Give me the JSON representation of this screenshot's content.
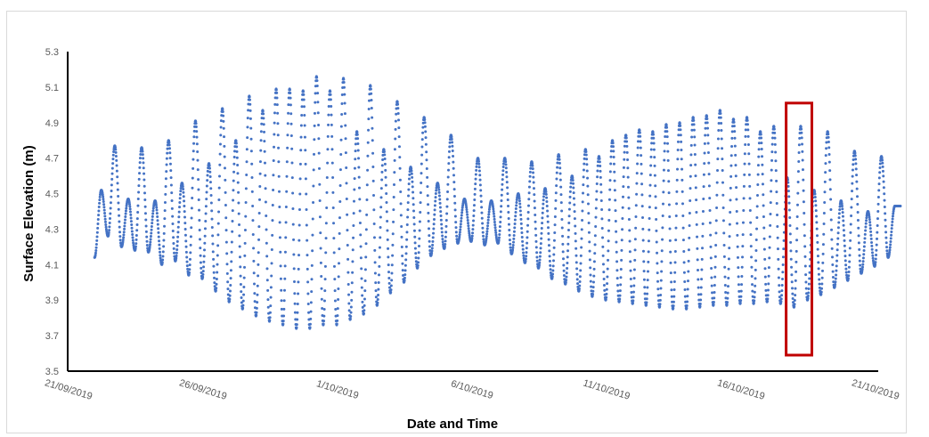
{
  "chart_data": {
    "type": "scatter",
    "title": "",
    "xlabel": "Date and Time",
    "ylabel": "Surface Elevation (m)",
    "ylim": [
      3.5,
      5.3
    ],
    "yticks": [
      "3.5",
      "3.7",
      "3.9",
      "4.1",
      "4.3",
      "4.5",
      "4.7",
      "4.9",
      "5.1",
      "5.3"
    ],
    "xlim": [
      "2019-09-21",
      "2019-10-21"
    ],
    "xticks": [
      "21/09/2019",
      "26/09/2019",
      "1/10/2019",
      "6/10/2019",
      "11/10/2019",
      "16/10/2019",
      "21/10/2019"
    ],
    "grid": false,
    "legend": "none",
    "marker_color": "#4472c4",
    "highlight_color": "#c00000",
    "highlight_box": {
      "x_range": [
        "2019-10-17 17:00",
        "2019-10-18 16:00"
      ],
      "y_range": [
        3.59,
        5.01
      ]
    },
    "series": [
      {
        "description": "semi-diurnal tidal cycles, approx. 15-minute samples",
        "start": "2019-09-22 00:00",
        "end": "2019-10-21 23:00",
        "high_water": [
          [
            "2019-09-22 06:00",
            4.52
          ],
          [
            "2019-09-22 18:00",
            4.77
          ],
          [
            "2019-09-23 06:00",
            4.47
          ],
          [
            "2019-09-23 18:00",
            4.76
          ],
          [
            "2019-09-24 06:00",
            4.46
          ],
          [
            "2019-09-24 18:00",
            4.8
          ],
          [
            "2019-09-25 06:00",
            4.56
          ],
          [
            "2019-09-25 18:00",
            4.91
          ],
          [
            "2019-09-26 06:00",
            4.67
          ],
          [
            "2019-09-26 18:00",
            4.98
          ],
          [
            "2019-09-27 06:00",
            4.8
          ],
          [
            "2019-09-27 18:00",
            5.05
          ],
          [
            "2019-09-28 06:00",
            4.97
          ],
          [
            "2019-09-28 18:00",
            5.09
          ],
          [
            "2019-09-29 06:00",
            5.09
          ],
          [
            "2019-09-29 18:00",
            5.08
          ],
          [
            "2019-09-30 06:00",
            5.16
          ],
          [
            "2019-09-30 18:00",
            5.08
          ],
          [
            "2019-10-01 06:00",
            5.15
          ],
          [
            "2019-10-01 18:00",
            4.85
          ],
          [
            "2019-10-02 06:00",
            5.11
          ],
          [
            "2019-10-02 18:00",
            4.75
          ],
          [
            "2019-10-03 06:00",
            5.02
          ],
          [
            "2019-10-03 18:00",
            4.65
          ],
          [
            "2019-10-04 06:00",
            4.93
          ],
          [
            "2019-10-04 18:00",
            4.56
          ],
          [
            "2019-10-05 06:00",
            4.83
          ],
          [
            "2019-10-05 18:00",
            4.47
          ],
          [
            "2019-10-06 06:00",
            4.7
          ],
          [
            "2019-10-06 18:00",
            4.46
          ],
          [
            "2019-10-07 06:00",
            4.7
          ],
          [
            "2019-10-07 18:00",
            4.5
          ],
          [
            "2019-10-08 06:00",
            4.68
          ],
          [
            "2019-10-08 18:00",
            4.53
          ],
          [
            "2019-10-09 06:00",
            4.72
          ],
          [
            "2019-10-09 18:00",
            4.6
          ],
          [
            "2019-10-10 06:00",
            4.75
          ],
          [
            "2019-10-10 18:00",
            4.71
          ],
          [
            "2019-10-11 06:00",
            4.8
          ],
          [
            "2019-10-11 18:00",
            4.83
          ],
          [
            "2019-10-12 06:00",
            4.86
          ],
          [
            "2019-10-12 18:00",
            4.85
          ],
          [
            "2019-10-13 06:00",
            4.89
          ],
          [
            "2019-10-13 18:00",
            4.9
          ],
          [
            "2019-10-14 06:00",
            4.93
          ],
          [
            "2019-10-14 18:00",
            4.94
          ],
          [
            "2019-10-15 06:00",
            4.97
          ],
          [
            "2019-10-15 18:00",
            4.92
          ],
          [
            "2019-10-16 06:00",
            4.93
          ],
          [
            "2019-10-16 18:00",
            4.85
          ],
          [
            "2019-10-17 06:00",
            4.88
          ],
          [
            "2019-10-17 18:00",
            4.59
          ],
          [
            "2019-10-18 06:00",
            4.88
          ],
          [
            "2019-10-18 18:00",
            4.52
          ],
          [
            "2019-10-19 06:00",
            4.85
          ],
          [
            "2019-10-19 18:00",
            4.46
          ],
          [
            "2019-10-20 06:00",
            4.74
          ],
          [
            "2019-10-20 18:00",
            4.4
          ],
          [
            "2019-10-21 06:00",
            4.71
          ],
          [
            "2019-10-21 18:00",
            4.43
          ]
        ],
        "low_water": [
          [
            "2019-09-22 00:00",
            4.14
          ],
          [
            "2019-09-22 12:00",
            4.26
          ],
          [
            "2019-09-23 00:00",
            4.2
          ],
          [
            "2019-09-23 12:00",
            4.18
          ],
          [
            "2019-09-24 00:00",
            4.17
          ],
          [
            "2019-09-24 12:00",
            4.1
          ],
          [
            "2019-09-25 00:00",
            4.12
          ],
          [
            "2019-09-25 12:00",
            4.04
          ],
          [
            "2019-09-26 00:00",
            4.02
          ],
          [
            "2019-09-26 12:00",
            3.95
          ],
          [
            "2019-09-27 00:00",
            3.89
          ],
          [
            "2019-09-27 12:00",
            3.85
          ],
          [
            "2019-09-28 00:00",
            3.81
          ],
          [
            "2019-09-28 12:00",
            3.78
          ],
          [
            "2019-09-29 00:00",
            3.76
          ],
          [
            "2019-09-29 12:00",
            3.74
          ],
          [
            "2019-09-30 00:00",
            3.74
          ],
          [
            "2019-09-30 12:00",
            3.76
          ],
          [
            "2019-10-01 00:00",
            3.76
          ],
          [
            "2019-10-01 12:00",
            3.79
          ],
          [
            "2019-10-02 00:00",
            3.82
          ],
          [
            "2019-10-02 12:00",
            3.87
          ],
          [
            "2019-10-03 00:00",
            3.94
          ],
          [
            "2019-10-03 12:00",
            4.0
          ],
          [
            "2019-10-04 00:00",
            4.08
          ],
          [
            "2019-10-04 12:00",
            4.15
          ],
          [
            "2019-10-05 00:00",
            4.19
          ],
          [
            "2019-10-05 12:00",
            4.22
          ],
          [
            "2019-10-06 00:00",
            4.23
          ],
          [
            "2019-10-06 12:00",
            4.21
          ],
          [
            "2019-10-07 00:00",
            4.22
          ],
          [
            "2019-10-07 12:00",
            4.16
          ],
          [
            "2019-10-08 00:00",
            4.11
          ],
          [
            "2019-10-08 12:00",
            4.08
          ],
          [
            "2019-10-09 00:00",
            4.02
          ],
          [
            "2019-10-09 12:00",
            3.99
          ],
          [
            "2019-10-10 00:00",
            3.95
          ],
          [
            "2019-10-10 12:00",
            3.92
          ],
          [
            "2019-10-11 00:00",
            3.9
          ],
          [
            "2019-10-11 12:00",
            3.89
          ],
          [
            "2019-10-12 00:00",
            3.88
          ],
          [
            "2019-10-12 12:00",
            3.87
          ],
          [
            "2019-10-13 00:00",
            3.86
          ],
          [
            "2019-10-13 12:00",
            3.85
          ],
          [
            "2019-10-14 00:00",
            3.85
          ],
          [
            "2019-10-14 12:00",
            3.86
          ],
          [
            "2019-10-15 00:00",
            3.87
          ],
          [
            "2019-10-15 12:00",
            3.87
          ],
          [
            "2019-10-16 00:00",
            3.88
          ],
          [
            "2019-10-16 12:00",
            3.88
          ],
          [
            "2019-10-17 00:00",
            3.89
          ],
          [
            "2019-10-17 12:00",
            3.88
          ],
          [
            "2019-10-18 00:00",
            3.86
          ],
          [
            "2019-10-18 12:00",
            3.9
          ],
          [
            "2019-10-19 00:00",
            3.93
          ],
          [
            "2019-10-19 12:00",
            3.97
          ],
          [
            "2019-10-20 00:00",
            4.01
          ],
          [
            "2019-10-20 12:00",
            4.05
          ],
          [
            "2019-10-21 00:00",
            4.09
          ],
          [
            "2019-10-21 12:00",
            4.14
          ]
        ]
      }
    ]
  }
}
